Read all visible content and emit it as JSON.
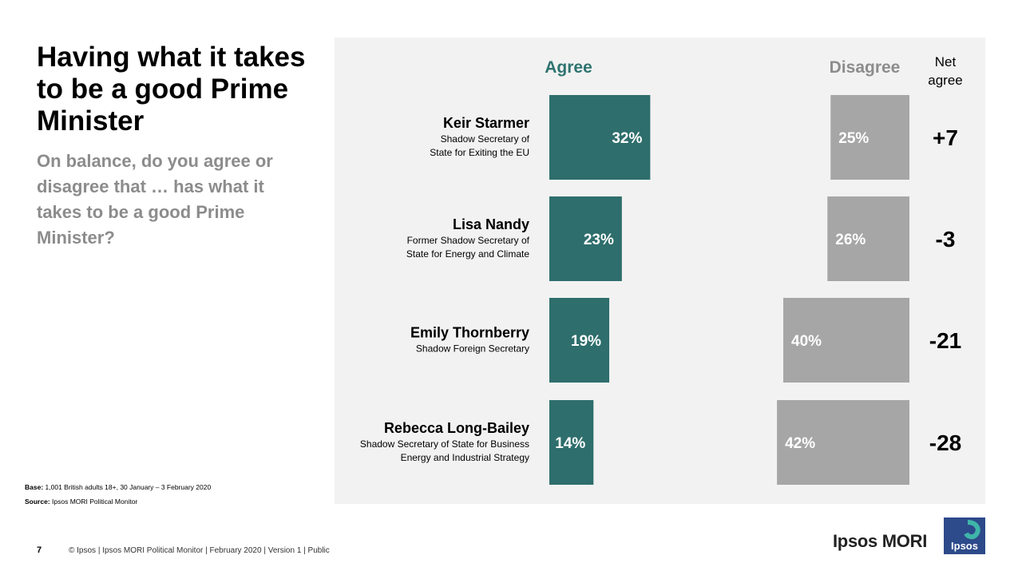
{
  "title": "Having what it takes to be a good Prime Minister",
  "subtitle": "On balance, do you agree or disagree that … has what it takes to be a good Prime Minister?",
  "base_label": "Base:",
  "base_text": "1,001 British adults 18+, 30 January – 3 February 2020",
  "source_label": "Source:",
  "source_text": "Ipsos MORI Political Monitor",
  "page_number": "7",
  "footer_text": "© Ipsos | Ipsos MORI Political Monitor | February 2020 | Version 1 | Public",
  "brand_name": "Ipsos MORI",
  "logo_text": "Ipsos",
  "colors": {
    "agree": "#2e6e6c",
    "disagree": "#a6a6a6",
    "agree_header": "#2e7370",
    "disagree_header": "#8c8c8c",
    "panel": "#f2f2f2",
    "logo_bg": "#2d4a8a"
  },
  "chart_data": {
    "type": "bar",
    "headers": {
      "agree": "Agree",
      "disagree": "Disagree",
      "net": [
        "Net",
        "agree"
      ]
    },
    "categories": [
      "Keir Starmer",
      "Lisa Nandy",
      "Emily Thornberry",
      "Rebecca Long-Bailey"
    ],
    "descriptions": [
      [
        "Shadow Secretary of",
        "State for Exiting the EU"
      ],
      [
        "Former Shadow Secretary of",
        "State for Energy and Climate"
      ],
      [
        "Shadow Foreign Secretary"
      ],
      [
        "Shadow Secretary of State for Business",
        "Energy and Industrial Strategy"
      ]
    ],
    "series": [
      {
        "name": "Agree",
        "values": [
          32,
          23,
          19,
          14
        ]
      },
      {
        "name": "Disagree",
        "values": [
          25,
          26,
          40,
          42
        ]
      }
    ],
    "net": [
      "+7",
      "-3",
      "-21",
      "-28"
    ]
  }
}
